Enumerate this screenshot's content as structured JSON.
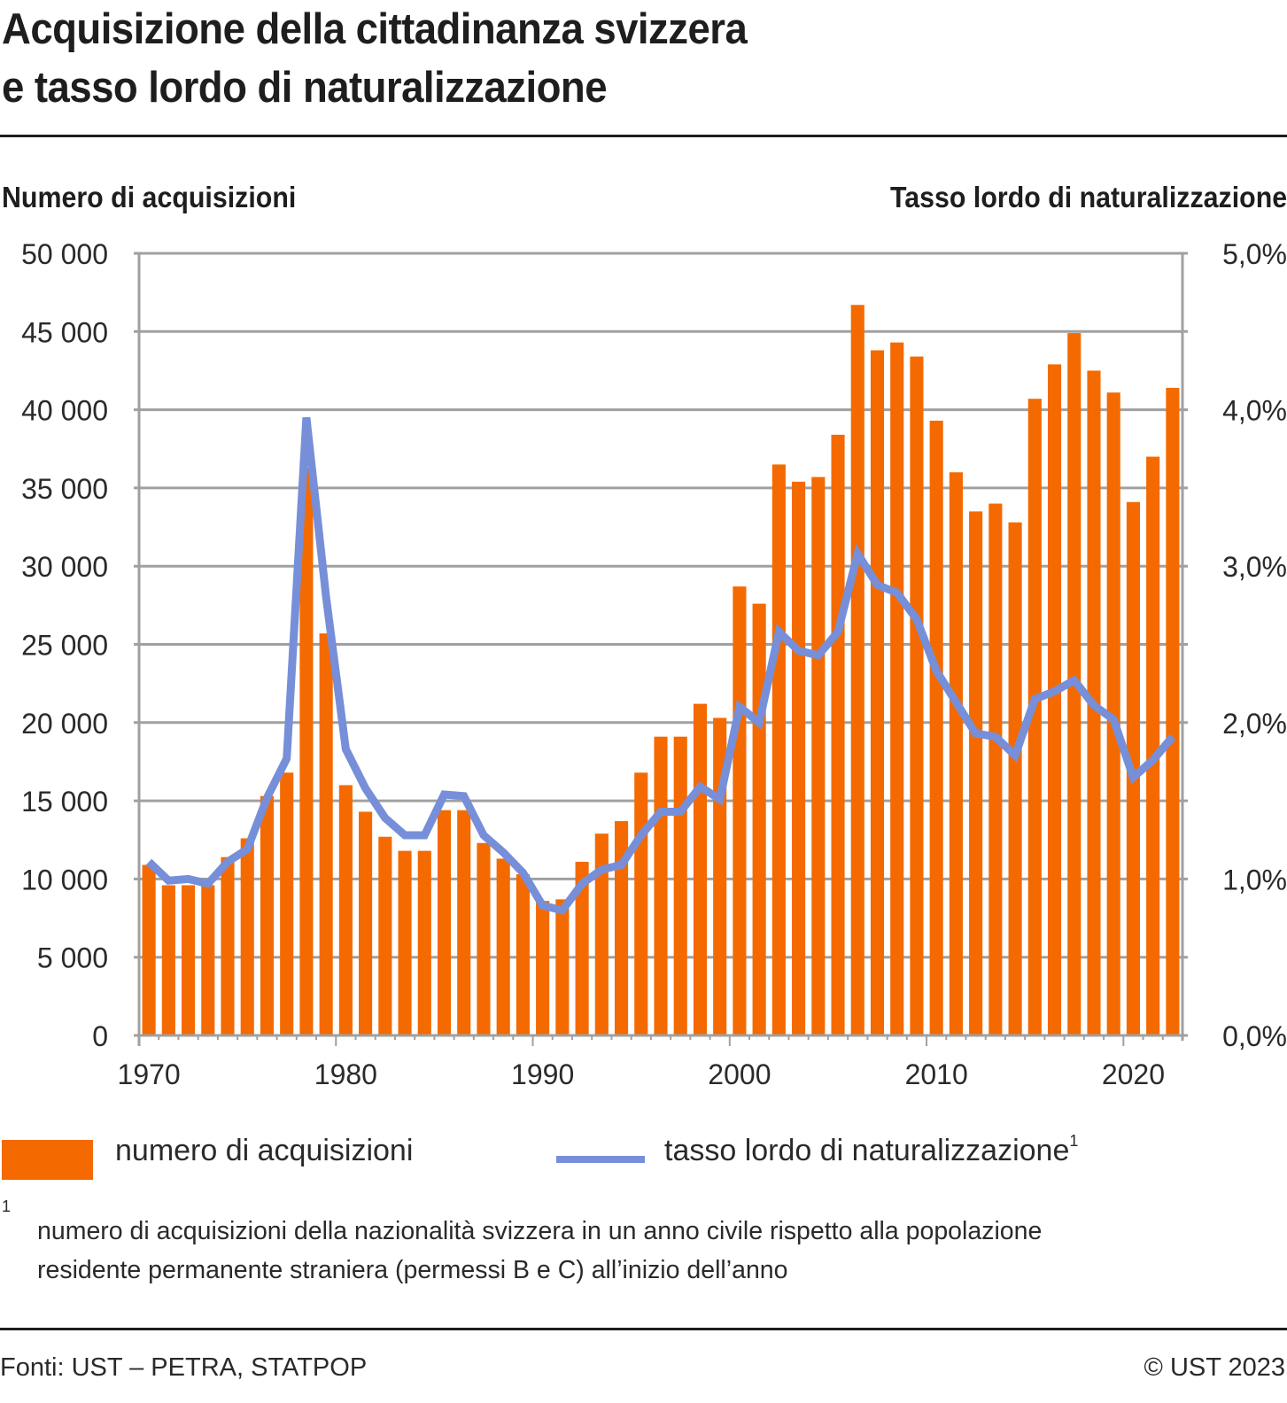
{
  "title": {
    "line1": "Acquisizione della cittadinanza svizzera",
    "line2": "e tasso lordo di naturalizzazione"
  },
  "chart_data": {
    "type": "bar+line",
    "title": "Acquisizione della cittadinanza svizzera e tasso lordo di naturalizzazione",
    "ylabel_left": "Numero di acquisizioni",
    "ylabel_right": "Tasso lordo di naturalizzazione",
    "xlabel": "",
    "ylim_left": [
      0,
      50000
    ],
    "ylim_right": [
      0,
      5.0
    ],
    "grid": true,
    "left_ticks": [
      {
        "value": 0,
        "label": "0"
      },
      {
        "value": 5000,
        "label": "5 000"
      },
      {
        "value": 10000,
        "label": "10 000"
      },
      {
        "value": 15000,
        "label": "15 000"
      },
      {
        "value": 20000,
        "label": "20 000"
      },
      {
        "value": 25000,
        "label": "25 000"
      },
      {
        "value": 30000,
        "label": "30 000"
      },
      {
        "value": 35000,
        "label": "35 000"
      },
      {
        "value": 40000,
        "label": "40 000"
      },
      {
        "value": 45000,
        "label": "45 000"
      },
      {
        "value": 50000,
        "label": "50 000"
      }
    ],
    "right_ticks": [
      {
        "value": 0.0,
        "label": "0,0%"
      },
      {
        "value": 1.0,
        "label": "1,0%"
      },
      {
        "value": 2.0,
        "label": "2,0%"
      },
      {
        "value": 3.0,
        "label": "3,0%"
      },
      {
        "value": 4.0,
        "label": "4,0%"
      },
      {
        "value": 5.0,
        "label": "5,0%"
      }
    ],
    "x_ticks": [
      {
        "value": 1970,
        "label": "1970"
      },
      {
        "value": 1980,
        "label": "1980"
      },
      {
        "value": 1990,
        "label": "1990"
      },
      {
        "value": 2000,
        "label": "2000"
      },
      {
        "value": 2010,
        "label": "2010"
      },
      {
        "value": 2020,
        "label": "2020"
      }
    ],
    "x": [
      1970,
      1971,
      1972,
      1973,
      1974,
      1975,
      1976,
      1977,
      1978,
      1979,
      1980,
      1981,
      1982,
      1983,
      1984,
      1985,
      1986,
      1987,
      1988,
      1989,
      1990,
      1991,
      1992,
      1993,
      1994,
      1995,
      1996,
      1997,
      1998,
      1999,
      2000,
      2001,
      2002,
      2003,
      2004,
      2005,
      2006,
      2007,
      2008,
      2009,
      2010,
      2011,
      2012,
      2013,
      2014,
      2015,
      2016,
      2017,
      2018,
      2019,
      2020,
      2021,
      2022
    ],
    "series": [
      {
        "name": "numero di acquisizioni",
        "type": "bar",
        "axis": "left",
        "color": "#f46a00",
        "values": [
          10900,
          9600,
          9600,
          9600,
          11400,
          12600,
          15300,
          16800,
          36300,
          25700,
          16000,
          14300,
          12700,
          11800,
          11800,
          14400,
          14400,
          12300,
          11300,
          10300,
          8600,
          8700,
          11100,
          12900,
          13700,
          16800,
          19100,
          19100,
          21200,
          20300,
          28700,
          27600,
          36500,
          35400,
          35700,
          38400,
          46700,
          43800,
          44300,
          43400,
          39300,
          36000,
          33500,
          34000,
          32800,
          40700,
          42900,
          44900,
          42500,
          41100,
          34100,
          37000,
          41400
        ]
      },
      {
        "name": "tasso lordo di naturalizzazione",
        "type": "line",
        "axis": "right",
        "unit": "%",
        "color": "#768fd8",
        "values": [
          1.11,
          0.99,
          1.0,
          0.97,
          1.11,
          1.19,
          1.52,
          1.77,
          3.95,
          2.8,
          1.83,
          1.58,
          1.39,
          1.28,
          1.28,
          1.54,
          1.53,
          1.28,
          1.17,
          1.04,
          0.83,
          0.8,
          0.97,
          1.06,
          1.09,
          1.28,
          1.43,
          1.43,
          1.59,
          1.51,
          2.1,
          2.0,
          2.58,
          2.46,
          2.43,
          2.58,
          3.08,
          2.88,
          2.83,
          2.66,
          2.33,
          2.13,
          1.93,
          1.91,
          1.79,
          2.15,
          2.2,
          2.27,
          2.11,
          2.02,
          1.65,
          1.76,
          1.91
        ]
      }
    ],
    "legend_position": "bottom"
  },
  "legend": {
    "bar_label": "numero di acquisizioni",
    "line_label": "tasso lordo di naturalizzazione",
    "line_sup": "1"
  },
  "footnote": {
    "mark": "1",
    "line1": "numero di acquisizioni della nazionalità svizzera in un anno civile rispetto alla popolazione",
    "line2": "residente permanente straniera (permessi B e C) all’inizio dell’anno"
  },
  "footer": {
    "source": "Fonti: UST – PETRA, STATPOP",
    "copyright": "© UST 2023"
  },
  "colors": {
    "bar": "#f46a00",
    "line": "#768fd8",
    "grid": "#a0a0a0",
    "text": "#1e1e1e"
  }
}
